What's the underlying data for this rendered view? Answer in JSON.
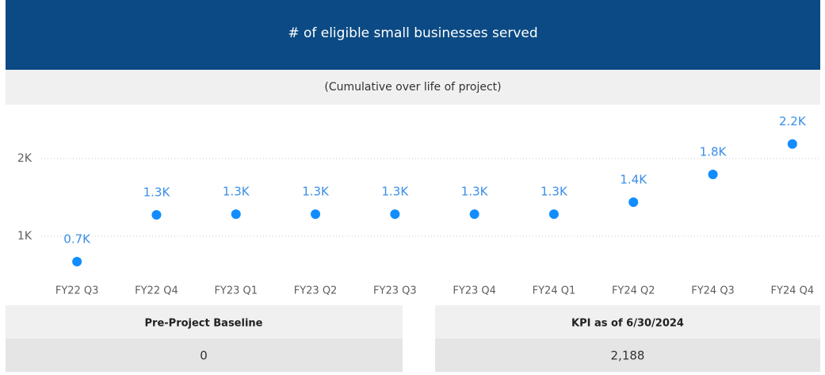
{
  "chart_data": {
    "type": "scatter",
    "title": "# of eligible small businesses served",
    "subtitle": "(Cumulative over life of project)",
    "categories": [
      "FY22 Q3",
      "FY22 Q4",
      "FY23 Q1",
      "FY23 Q2",
      "FY23 Q3",
      "FY23 Q4",
      "FY24 Q1",
      "FY24 Q2",
      "FY24 Q3",
      "FY24 Q4"
    ],
    "values": [
      673,
      1275,
      1285,
      1285,
      1285,
      1285,
      1285,
      1439,
      1796,
      2188
    ],
    "value_labels": [
      "0.7K",
      "1.3K",
      "1.3K",
      "1.3K",
      "1.3K",
      "1.3K",
      "1.3K",
      "1.4K",
      "1.8K",
      "2.2K"
    ],
    "color": "#118dff",
    "ylim": [
      500,
      2500
    ],
    "yticks": [
      {
        "value": 1000,
        "label": "1K"
      },
      {
        "value": 2000,
        "label": "2K"
      }
    ],
    "grid": true
  },
  "cards": [
    {
      "label": "Pre-Project Baseline",
      "value": "0"
    },
    {
      "label": "KPI as of 6/30/2024",
      "value": "2,188"
    }
  ]
}
